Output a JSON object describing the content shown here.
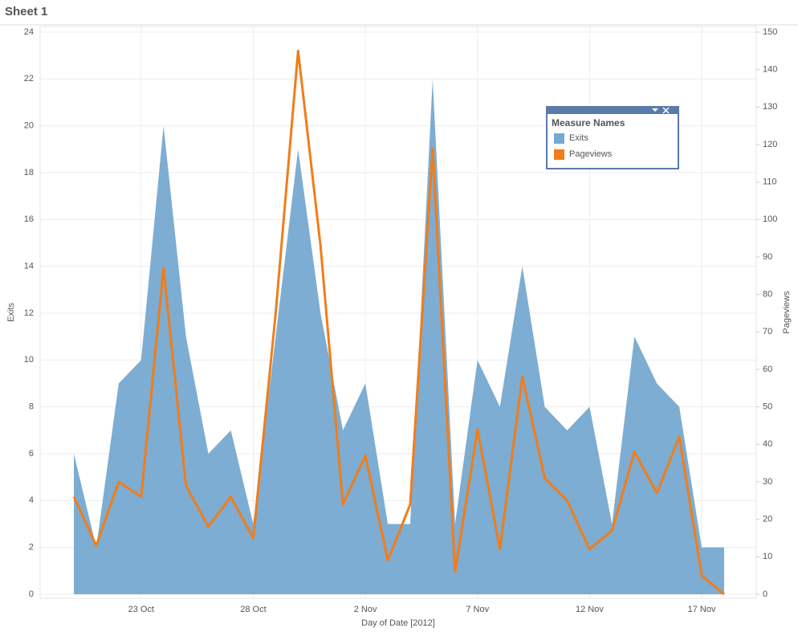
{
  "chart_data": {
    "type": "area-line",
    "title": "Sheet 1",
    "x_label": "Day of Date [2012]",
    "y_label": "Exits",
    "y2_label": "Pageviews",
    "legend_title": "Measure Names",
    "legend": "top-right",
    "categories": [
      null,
      null,
      null,
      "23 Oct",
      null,
      null,
      null,
      null,
      "28 Oct",
      null,
      null,
      null,
      null,
      "2 Nov",
      null,
      null,
      null,
      null,
      "7 Nov",
      null,
      null,
      null,
      null,
      "12 Nov",
      null,
      null,
      null,
      null,
      "17 Nov",
      null
    ],
    "series": [
      {
        "name": "Exits",
        "color": "#76a9d0",
        "mark": "area",
        "axis": "y",
        "values": [
          6,
          2,
          9,
          10,
          20,
          11,
          6,
          7,
          3,
          11,
          19,
          12,
          7,
          9,
          3,
          3,
          22,
          3,
          10,
          8,
          14,
          8,
          7,
          8,
          3,
          11,
          9,
          8,
          2,
          2
        ]
      },
      {
        "name": "Pageviews",
        "color": "#f07d1a",
        "mark": "line",
        "axis": "y2",
        "values": [
          26,
          13,
          30,
          26,
          87,
          29,
          18,
          26,
          15,
          75,
          145,
          93,
          24,
          37,
          9,
          24,
          119,
          6,
          44,
          12,
          58,
          31,
          25,
          12,
          17,
          38,
          27,
          42,
          5,
          0
        ]
      }
    ],
    "ylim": [
      0,
      24
    ],
    "yticks": [
      0,
      2,
      4,
      6,
      8,
      10,
      12,
      14,
      16,
      18,
      20,
      22,
      24
    ],
    "y2lim": [
      0,
      150
    ],
    "y2ticks": [
      0,
      10,
      20,
      30,
      40,
      50,
      60,
      70,
      80,
      90,
      100,
      110,
      120,
      130,
      140,
      150
    ],
    "grid": true
  }
}
